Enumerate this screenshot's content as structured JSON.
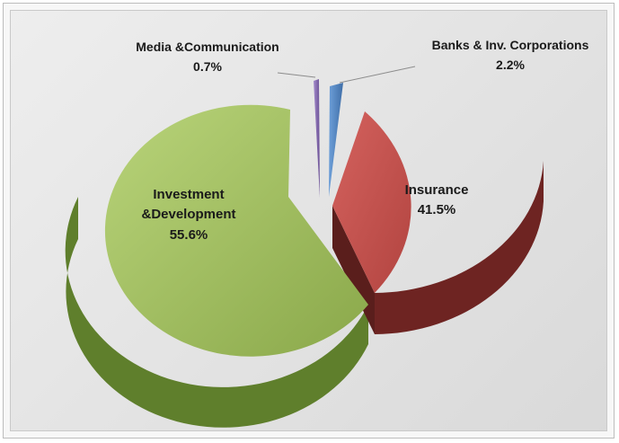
{
  "chart_data": {
    "type": "pie",
    "style": "3d-exploded",
    "title": "",
    "legend": "none",
    "series": [
      {
        "name": "",
        "slices": [
          {
            "label": "Banks & Inv. Corporations",
            "value": 2.2,
            "value_label": "2.2%",
            "color": "#4f81bd"
          },
          {
            "label": "Insurance",
            "value": 41.5,
            "value_label": "41.5%",
            "color": "#c0504d"
          },
          {
            "label": "Investment",
            "label_line2": "&Development",
            "value": 55.6,
            "value_label": "55.6%",
            "color": "#9bbb59"
          },
          {
            "label": "Media &Communication",
            "value": 0.7,
            "value_label": "0.7%",
            "color": "#8064a2"
          }
        ]
      }
    ]
  }
}
